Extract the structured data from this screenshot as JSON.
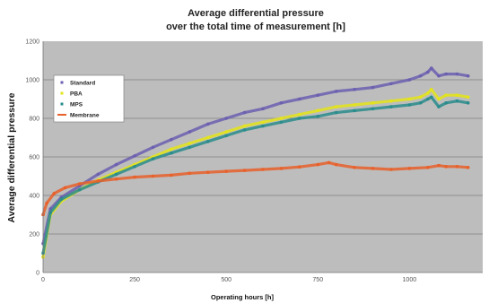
{
  "chart_data": {
    "type": "scatter",
    "title_line1": "Average differential pressure",
    "title_line2": "over the total time of measurement [h]",
    "xlabel": "Operating hours [h]",
    "ylabel": "Average differential pressure",
    "xlim": [
      0,
      1200
    ],
    "ylim": [
      0,
      1200
    ],
    "xticks": [
      "0",
      "250",
      "500",
      "750",
      "1000"
    ],
    "yticks": [
      "0",
      "200",
      "400",
      "600",
      "800",
      "1000",
      "1200"
    ],
    "grid": true,
    "legend_position": "top-left",
    "series": [
      {
        "name": "Standard",
        "color": "#6b5fb0",
        "x": [
          0,
          20,
          50,
          100,
          150,
          200,
          250,
          300,
          350,
          400,
          450,
          500,
          550,
          600,
          650,
          700,
          750,
          800,
          850,
          900,
          950,
          1000,
          1030,
          1050,
          1060,
          1080,
          1100,
          1130,
          1160
        ],
        "y": [
          150,
          330,
          390,
          450,
          510,
          560,
          605,
          650,
          690,
          730,
          770,
          800,
          830,
          850,
          880,
          900,
          920,
          940,
          950,
          960,
          980,
          1000,
          1020,
          1040,
          1060,
          1020,
          1030,
          1030,
          1020
        ]
      },
      {
        "name": "PBA",
        "color": "#e4e41a",
        "x": [
          0,
          20,
          50,
          100,
          150,
          200,
          250,
          300,
          350,
          400,
          450,
          500,
          550,
          600,
          650,
          700,
          750,
          800,
          850,
          900,
          950,
          1000,
          1030,
          1050,
          1060,
          1080,
          1100,
          1130,
          1160
        ],
        "y": [
          80,
          300,
          370,
          430,
          480,
          520,
          560,
          600,
          640,
          670,
          700,
          730,
          760,
          780,
          800,
          820,
          840,
          860,
          870,
          880,
          890,
          900,
          910,
          930,
          950,
          900,
          920,
          920,
          910
        ]
      },
      {
        "name": "MPS",
        "color": "#2a8c8c",
        "x": [
          0,
          20,
          50,
          100,
          150,
          200,
          250,
          300,
          350,
          400,
          450,
          500,
          550,
          600,
          650,
          700,
          750,
          800,
          850,
          900,
          950,
          1000,
          1030,
          1050,
          1060,
          1080,
          1100,
          1130,
          1160
        ],
        "y": [
          100,
          310,
          380,
          430,
          470,
          510,
          550,
          590,
          620,
          650,
          680,
          710,
          740,
          760,
          780,
          800,
          810,
          830,
          840,
          850,
          860,
          870,
          880,
          900,
          910,
          860,
          880,
          890,
          880
        ]
      },
      {
        "name": "Membrane",
        "color": "#e8602a",
        "x": [
          0,
          10,
          30,
          60,
          100,
          150,
          200,
          250,
          300,
          350,
          400,
          450,
          500,
          550,
          600,
          650,
          700,
          750,
          780,
          800,
          850,
          900,
          950,
          1000,
          1050,
          1080,
          1100,
          1130,
          1160
        ],
        "y": [
          300,
          360,
          410,
          440,
          460,
          475,
          485,
          495,
          500,
          505,
          515,
          520,
          525,
          530,
          535,
          540,
          548,
          560,
          570,
          560,
          545,
          540,
          535,
          540,
          545,
          555,
          550,
          550,
          545
        ]
      }
    ]
  }
}
